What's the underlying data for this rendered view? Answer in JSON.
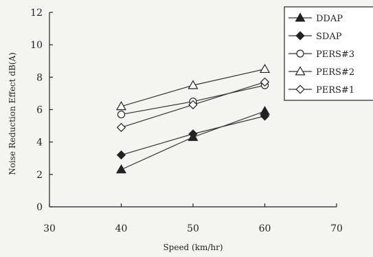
{
  "chart_data": {
    "type": "line",
    "title": "",
    "xlabel": "Speed (km/hr)",
    "ylabel": "Noise Reduction Effect dB(A)",
    "xlim": [
      30,
      70
    ],
    "ylim": [
      0,
      12
    ],
    "xticks": [
      30,
      40,
      50,
      60,
      70
    ],
    "yticks": [
      0,
      2,
      4,
      6,
      8,
      10,
      12
    ],
    "grid": false,
    "legend_position": "top-right",
    "x": [
      40,
      50,
      60
    ],
    "series": [
      {
        "name": "DDAP",
        "marker": "triangle-filled",
        "values": [
          2.3,
          4.3,
          5.9
        ]
      },
      {
        "name": "SDAP",
        "marker": "diamond-filled",
        "values": [
          3.2,
          4.5,
          5.6
        ]
      },
      {
        "name": "PERS#3",
        "marker": "circle-open",
        "values": [
          5.7,
          6.5,
          7.5
        ]
      },
      {
        "name": "PERS#2",
        "marker": "triangle-open",
        "values": [
          6.2,
          7.5,
          8.5
        ]
      },
      {
        "name": "PERS#1",
        "marker": "diamond-open",
        "values": [
          4.9,
          6.3,
          7.7
        ]
      }
    ]
  }
}
